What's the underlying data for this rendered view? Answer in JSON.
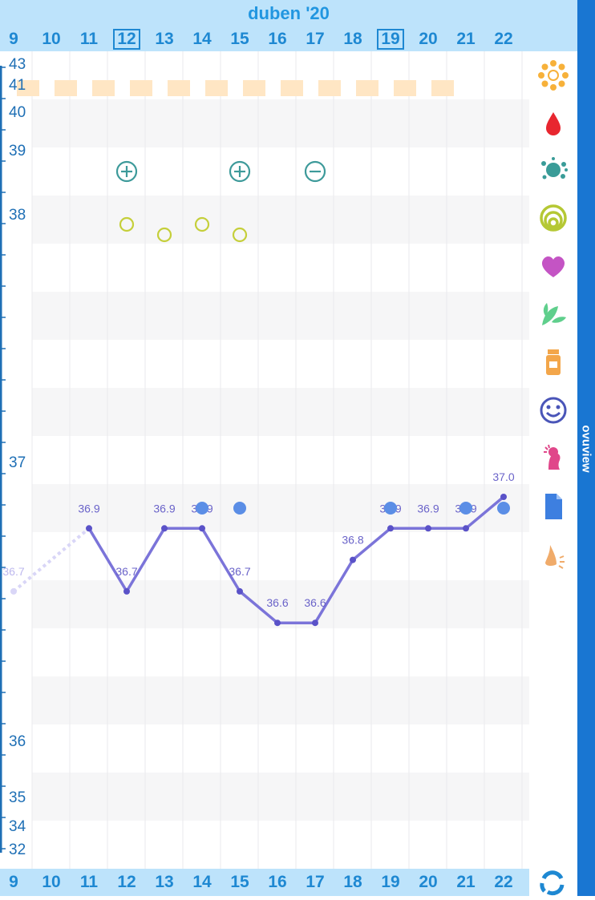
{
  "header": {
    "month_label": "duben '20"
  },
  "days": [
    {
      "label": "9",
      "boxed": false
    },
    {
      "label": "10",
      "boxed": false
    },
    {
      "label": "11",
      "boxed": false
    },
    {
      "label": "12",
      "boxed": true
    },
    {
      "label": "13",
      "boxed": false
    },
    {
      "label": "14",
      "boxed": false
    },
    {
      "label": "15",
      "boxed": false
    },
    {
      "label": "16",
      "boxed": false
    },
    {
      "label": "17",
      "boxed": false
    },
    {
      "label": "18",
      "boxed": false
    },
    {
      "label": "19",
      "boxed": true
    },
    {
      "label": "20",
      "boxed": false
    },
    {
      "label": "21",
      "boxed": false
    },
    {
      "label": "22",
      "boxed": false
    }
  ],
  "y_labels": [
    "43",
    "41",
    "40",
    "39",
    "38",
    "37",
    "36",
    "35",
    "34",
    "32"
  ],
  "brand": "ovuview",
  "chart_data": {
    "type": "line",
    "x": [
      "9",
      "10",
      "11",
      "12",
      "13",
      "14",
      "15",
      "16",
      "17",
      "18",
      "19",
      "20",
      "21",
      "22"
    ],
    "series": [
      {
        "values": [
          36.7,
          null,
          36.9,
          36.7,
          36.9,
          36.9,
          36.7,
          36.6,
          36.6,
          36.8,
          36.9,
          36.9,
          36.9,
          37.0
        ],
        "labels": [
          "36.7",
          "",
          "36.9",
          "36.7",
          "36.9",
          "36.9",
          "36.7",
          "36.6",
          "36.6",
          "36.8",
          "36.9",
          "36.9",
          "36.9",
          "37.0"
        ]
      }
    ],
    "dotted_segment": [
      "9",
      "11"
    ],
    "period_days": [
      "9",
      "10",
      "11",
      "12",
      "13",
      "14",
      "15",
      "16",
      "17",
      "18",
      "19",
      "20"
    ],
    "test_markers": [
      {
        "day": "12",
        "symbol": "⊕"
      },
      {
        "day": "15",
        "symbol": "⊕"
      },
      {
        "day": "17",
        "symbol": "⊖"
      }
    ],
    "cervix_markers": [
      {
        "day": "12",
        "level": 0
      },
      {
        "day": "13",
        "level": 1
      },
      {
        "day": "14",
        "level": 0
      },
      {
        "day": "15",
        "level": 1
      }
    ],
    "intercourse_days": [
      "14",
      "15",
      "19",
      "21",
      "22"
    ],
    "colors": {
      "line": "#7b74d9",
      "period": "#ffe6c4",
      "test": "#3d9a9a",
      "cervix": "#c5cf3a",
      "dot": "#5b8ee6"
    }
  },
  "icons": [
    "sun-icon",
    "drop-icon",
    "splash-icon",
    "rings-icon",
    "heart-icon",
    "leaf-icon",
    "pill-bottle-icon",
    "smiley-icon",
    "person-icon",
    "document-icon",
    "nose-icon"
  ]
}
